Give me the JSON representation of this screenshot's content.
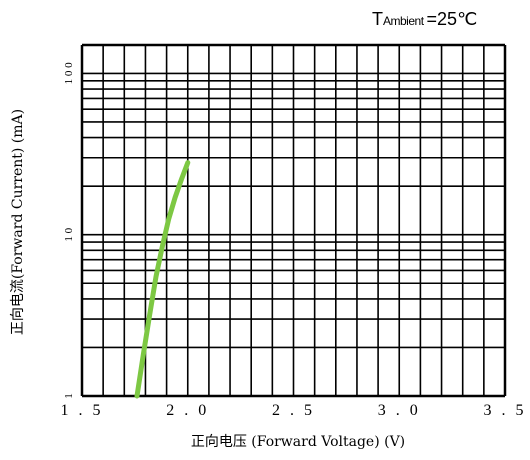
{
  "annotation": {
    "symbol": "T",
    "subscript": "Ambient",
    "value": "=25℃"
  },
  "chart_data": {
    "type": "line",
    "title": "",
    "xlabel": "正向电压 (Forward Voltage) (V)",
    "ylabel": "正向电流(Forward Current) (mA)",
    "x_scale": "linear",
    "y_scale": "log",
    "xlim": [
      1.5,
      3.5
    ],
    "ylim": [
      1,
      150
    ],
    "x_ticks": [
      1.5,
      2.0,
      2.5,
      3.0,
      3.5
    ],
    "x_tick_labels": [
      "1.5",
      "2.0",
      "2.5",
      "3.0",
      "3.5"
    ],
    "y_ticks": [
      1,
      10,
      100
    ],
    "y_tick_labels": [
      "1",
      "10",
      "100"
    ],
    "grid": true,
    "series_color": "#7dc843",
    "grid_color": "#000000",
    "series": [
      {
        "x": [
          1.76,
          1.79,
          1.82,
          1.85,
          1.88,
          1.91,
          1.94,
          1.97,
          2.0
        ],
        "y": [
          1,
          1.8,
          3.2,
          5.5,
          8.5,
          12.5,
          17,
          22,
          28
        ]
      }
    ]
  }
}
